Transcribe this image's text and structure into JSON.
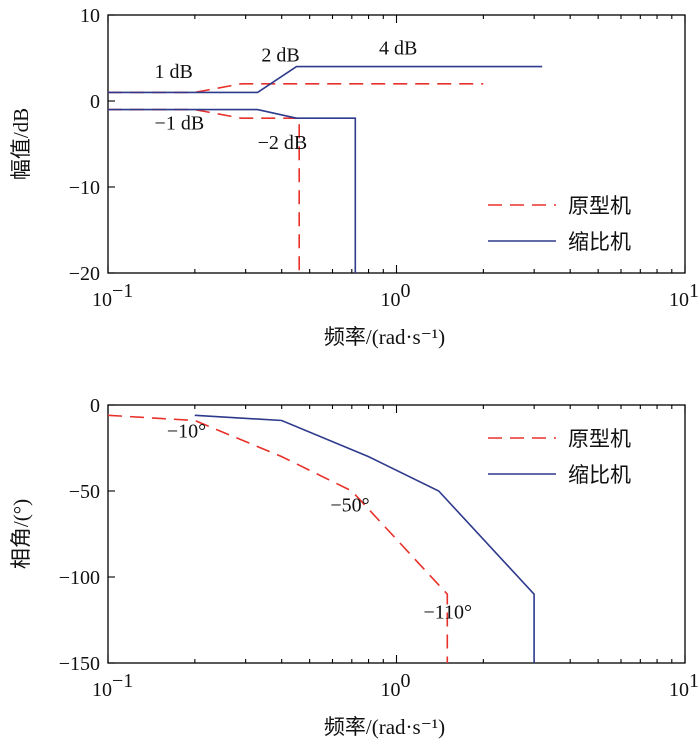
{
  "chart_data": [
    {
      "type": "line",
      "xlabel": "频率/(rad·s⁻¹)",
      "ylabel": "幅值/dB",
      "xscale": "log",
      "xlim": [
        0.1,
        10
      ],
      "ylim": [
        -20,
        10
      ],
      "xticks": [
        {
          "value": 0.1,
          "base": "10",
          "exp": "−1"
        },
        {
          "value": 1,
          "base": "10",
          "exp": "0"
        },
        {
          "value": 10,
          "base": "10",
          "exp": "1"
        }
      ],
      "yticks": [
        {
          "value": 10,
          "label": "10"
        },
        {
          "value": 0,
          "label": "0"
        },
        {
          "value": -10,
          "label": "−10"
        },
        {
          "value": -20,
          "label": "−20"
        }
      ],
      "legend_position": "bottom-right",
      "series": [
        {
          "name": "原型机",
          "color": "#e8312a",
          "style": "dashed",
          "points": [
            [
              0.1,
              1
            ],
            [
              0.2,
              1
            ],
            [
              0.29,
              2
            ],
            [
              2.0,
              2
            ]
          ]
        },
        {
          "name": "原型机",
          "color": "#e8312a",
          "style": "dashed",
          "legend": false,
          "points": [
            [
              0.1,
              -1
            ],
            [
              0.2,
              -1
            ],
            [
              0.29,
              -2
            ],
            [
              0.46,
              -2
            ],
            [
              0.46,
              -20
            ]
          ]
        },
        {
          "name": "缩比机",
          "color": "#2e3a8c",
          "style": "solid",
          "points": [
            [
              0.1,
              1
            ],
            [
              0.33,
              1
            ],
            [
              0.45,
              4
            ],
            [
              3.2,
              4
            ]
          ]
        },
        {
          "name": "缩比机",
          "color": "#2e3a8c",
          "style": "solid",
          "legend": false,
          "points": [
            [
              0.1,
              -1
            ],
            [
              0.33,
              -1
            ],
            [
              0.45,
              -2
            ],
            [
              0.72,
              -2
            ],
            [
              0.72,
              -20
            ]
          ]
        }
      ],
      "annotations": [
        {
          "text": "1 dB",
          "x": 0.145,
          "y": 2.7
        },
        {
          "text": "−1 dB",
          "x": 0.145,
          "y": -3.3
        },
        {
          "text": "2 dB",
          "x": 0.34,
          "y": 4.6
        },
        {
          "text": "4 dB",
          "x": 0.87,
          "y": 5.4
        },
        {
          "text": "−2 dB",
          "x": 0.33,
          "y": -5.6
        }
      ]
    },
    {
      "type": "line",
      "xlabel": "频率/(rad·s⁻¹)",
      "ylabel": "相角/(°)",
      "xscale": "log",
      "xlim": [
        0.1,
        10
      ],
      "ylim": [
        -150,
        0
      ],
      "xticks": [
        {
          "value": 0.1,
          "base": "10",
          "exp": "−1"
        },
        {
          "value": 1,
          "base": "10",
          "exp": "0"
        },
        {
          "value": 10,
          "base": "10",
          "exp": "1"
        }
      ],
      "yticks": [
        {
          "value": 0,
          "label": "0"
        },
        {
          "value": -50,
          "label": "−50"
        },
        {
          "value": -100,
          "label": "−100"
        },
        {
          "value": -150,
          "label": "−150"
        }
      ],
      "legend_position": "top-right",
      "series": [
        {
          "name": "原型机",
          "color": "#e8312a",
          "style": "dashed",
          "points": [
            [
              0.1,
              -6
            ],
            [
              0.2,
              -9
            ],
            [
              0.4,
              -30
            ],
            [
              0.7,
              -50
            ],
            [
              1.5,
              -110
            ],
            [
              1.5,
              -150
            ]
          ]
        },
        {
          "name": "缩比机",
          "color": "#2e3a8c",
          "style": "solid",
          "points": [
            [
              0.2,
              -6
            ],
            [
              0.4,
              -9
            ],
            [
              0.8,
              -30
            ],
            [
              1.4,
              -50
            ],
            [
              3.0,
              -110
            ],
            [
              3.0,
              -150
            ]
          ]
        }
      ],
      "annotations": [
        {
          "text": "−10°",
          "x": 0.16,
          "y": -19
        },
        {
          "text": "−50°",
          "x": 0.59,
          "y": -62
        },
        {
          "text": "−110°",
          "x": 1.24,
          "y": -124
        }
      ]
    }
  ]
}
